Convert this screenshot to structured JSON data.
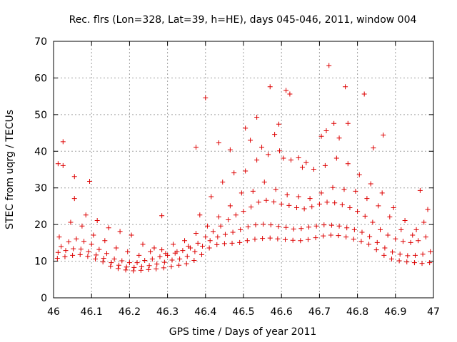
{
  "chart_data": {
    "type": "scatter",
    "title": "Rec. flrs (Lon=328, Lat=39, h=HE), days 045-046, 2011, window 004",
    "xlabel": "GPS time / Days of year 2011",
    "ylabel": "STEC from uqrg / TECUs",
    "xlim": [
      46,
      47
    ],
    "ylim": [
      0,
      70
    ],
    "xticks": [
      "46",
      "46.1",
      "46.2",
      "46.3",
      "46.4",
      "46.5",
      "46.6",
      "46.7",
      "46.8",
      "46.9",
      "47"
    ],
    "yticks": [
      "0",
      "10",
      "20",
      "30",
      "40",
      "50",
      "60",
      "70"
    ],
    "grid": true,
    "marker": "+",
    "color": "#dd0000",
    "x": [
      46.01,
      46.03,
      46.05,
      46.07,
      46.09,
      46.11,
      46.13,
      46.15,
      46.17,
      46.19,
      46.21,
      46.23,
      46.25,
      46.27,
      46.29,
      46.31,
      46.33,
      46.35,
      46.37,
      46.39,
      46.41,
      46.43,
      46.45,
      46.47,
      46.49,
      46.51,
      46.53,
      46.55,
      46.57,
      46.59,
      46.61,
      46.63,
      46.65,
      46.67,
      46.69,
      46.71,
      46.73,
      46.75,
      46.77,
      46.79,
      46.81,
      46.83,
      46.85,
      46.87,
      46.89,
      46.91,
      46.93,
      46.95,
      46.97,
      46.99,
      46.012,
      46.032,
      46.052,
      46.072,
      46.092,
      46.112,
      46.132,
      46.152,
      46.172,
      46.192,
      46.212,
      46.232,
      46.252,
      46.272,
      46.292,
      46.312,
      46.332,
      46.352,
      46.372,
      46.392,
      46.412,
      46.432,
      46.452,
      46.472,
      46.492,
      46.512,
      46.532,
      46.552,
      46.572,
      46.592,
      46.612,
      46.632,
      46.652,
      46.672,
      46.692,
      46.712,
      46.732,
      46.752,
      46.772,
      46.792,
      46.812,
      46.832,
      46.852,
      46.872,
      46.892,
      46.912,
      46.932,
      46.952,
      46.972,
      46.992,
      46.02,
      46.04,
      46.06,
      46.08,
      46.1,
      46.12,
      46.14,
      46.16,
      46.18,
      46.2,
      46.22,
      46.24,
      46.26,
      46.28,
      46.3,
      46.32,
      46.34,
      46.36,
      46.38,
      46.4,
      46.42,
      46.44,
      46.46,
      46.48,
      46.5,
      46.52,
      46.54,
      46.56,
      46.58,
      46.6,
      46.62,
      46.64,
      46.66,
      46.68,
      46.7,
      46.72,
      46.74,
      46.76,
      46.78,
      46.8,
      46.82,
      46.84,
      46.86,
      46.88,
      46.9,
      46.92,
      46.94,
      46.96,
      46.98,
      46.015,
      46.045,
      46.075,
      46.105,
      46.135,
      46.165,
      46.195,
      46.225,
      46.255,
      46.285,
      46.315,
      46.345,
      46.375,
      46.405,
      46.435,
      46.465,
      46.495,
      46.525,
      46.555,
      46.585,
      46.615,
      46.645,
      46.675,
      46.705,
      46.735,
      46.765,
      46.795,
      46.825,
      46.855,
      46.885,
      46.915,
      46.945,
      46.975,
      46.025,
      46.055,
      46.085,
      46.115,
      46.145,
      46.175,
      46.205,
      46.235,
      46.265,
      46.295,
      46.325,
      46.355,
      46.385,
      46.415,
      46.445,
      46.475,
      46.505,
      46.535,
      46.565,
      46.595,
      46.625,
      46.655,
      46.685,
      46.715,
      46.745,
      46.775,
      46.805,
      46.835,
      46.865,
      46.895,
      46.925,
      46.955,
      46.985,
      46.012,
      46.025,
      46.055,
      46.095,
      46.285,
      46.375,
      46.4,
      46.435,
      46.465,
      46.505,
      46.518,
      46.535,
      46.548,
      46.57,
      46.582,
      46.593,
      46.605,
      46.612,
      46.622,
      46.645,
      46.665,
      46.705,
      46.718,
      46.725,
      46.738,
      46.752,
      46.768,
      46.775,
      46.818,
      46.842,
      46.868,
      46.965
    ],
    "y": [
      10.8,
      11.2,
      11.6,
      11.8,
      11.3,
      10.6,
      9.8,
      8.6,
      8.0,
      7.6,
      7.4,
      7.5,
      7.7,
      7.9,
      8.2,
      8.5,
      8.9,
      9.3,
      10.2,
      11.8,
      13.6,
      14.5,
      14.8,
      14.9,
      15.1,
      15.6,
      16.0,
      16.2,
      16.3,
      16.1,
      15.9,
      15.7,
      15.6,
      15.9,
      16.4,
      16.9,
      17.1,
      17.0,
      16.6,
      16.0,
      15.4,
      14.6,
      13.1,
      11.6,
      10.6,
      10.1,
      9.8,
      9.6,
      9.4,
      9.6,
      12.4,
      12.9,
      13.4,
      13.3,
      12.6,
      11.7,
      10.8,
      9.6,
      8.9,
      8.4,
      8.3,
      8.5,
      8.8,
      9.2,
      9.7,
      10.3,
      10.6,
      11.3,
      12.6,
      14.1,
      15.6,
      16.6,
      17.3,
      17.9,
      18.6,
      19.4,
      19.9,
      20.1,
      19.9,
      19.5,
      19.2,
      18.8,
      18.9,
      19.3,
      19.6,
      19.9,
      19.8,
      19.6,
      19.1,
      18.6,
      17.9,
      16.7,
      15.1,
      13.6,
      12.5,
      11.9,
      11.5,
      11.6,
      11.9,
      12.6,
      14.0,
      15.3,
      16.1,
      15.4,
      14.6,
      13.2,
      12.1,
      10.6,
      10.1,
      9.6,
      9.6,
      10.2,
      10.6,
      11.2,
      11.6,
      12.2,
      12.9,
      13.6,
      14.9,
      16.6,
      18.1,
      19.6,
      21.3,
      22.6,
      23.6,
      24.8,
      26.1,
      26.6,
      26.2,
      25.6,
      25.2,
      24.6,
      24.3,
      24.9,
      25.6,
      26.1,
      25.9,
      25.4,
      24.6,
      23.6,
      22.3,
      20.6,
      18.6,
      17.1,
      16.1,
      15.4,
      15.1,
      15.6,
      16.6,
      16.6,
      20.6,
      19.6,
      17.1,
      15.6,
      13.6,
      12.6,
      11.6,
      12.6,
      13.1,
      14.6,
      15.6,
      17.6,
      19.6,
      22.1,
      25.1,
      28.6,
      29.1,
      31.6,
      29.6,
      28.1,
      27.6,
      27.1,
      28.6,
      30.1,
      29.6,
      29.1,
      27.1,
      25.1,
      22.1,
      18.6,
      17.1,
      20.6,
      36.1,
      27.1,
      22.6,
      21.1,
      19.1,
      18.1,
      17.1,
      14.6,
      13.6,
      12.1,
      12.6,
      14.1,
      22.6,
      27.6,
      31.6,
      34.1,
      34.6,
      37.6,
      39.1,
      40.1,
      37.6,
      35.6,
      35.1,
      36.1,
      38.1,
      36.6,
      33.6,
      31.1,
      28.6,
      24.6,
      21.1,
      18.6,
      24.1,
      36.6,
      42.6,
      33.1,
      31.8,
      22.4,
      41.1,
      54.6,
      42.3,
      40.4,
      46.3,
      43.0,
      49.3,
      41.1,
      57.6,
      44.6,
      47.4,
      38.1,
      56.6,
      55.6,
      38.2,
      36.9,
      44.1,
      45.6,
      63.4,
      47.6,
      43.6,
      57.6,
      47.6,
      55.6,
      40.9,
      44.4,
      29.3
    ]
  }
}
